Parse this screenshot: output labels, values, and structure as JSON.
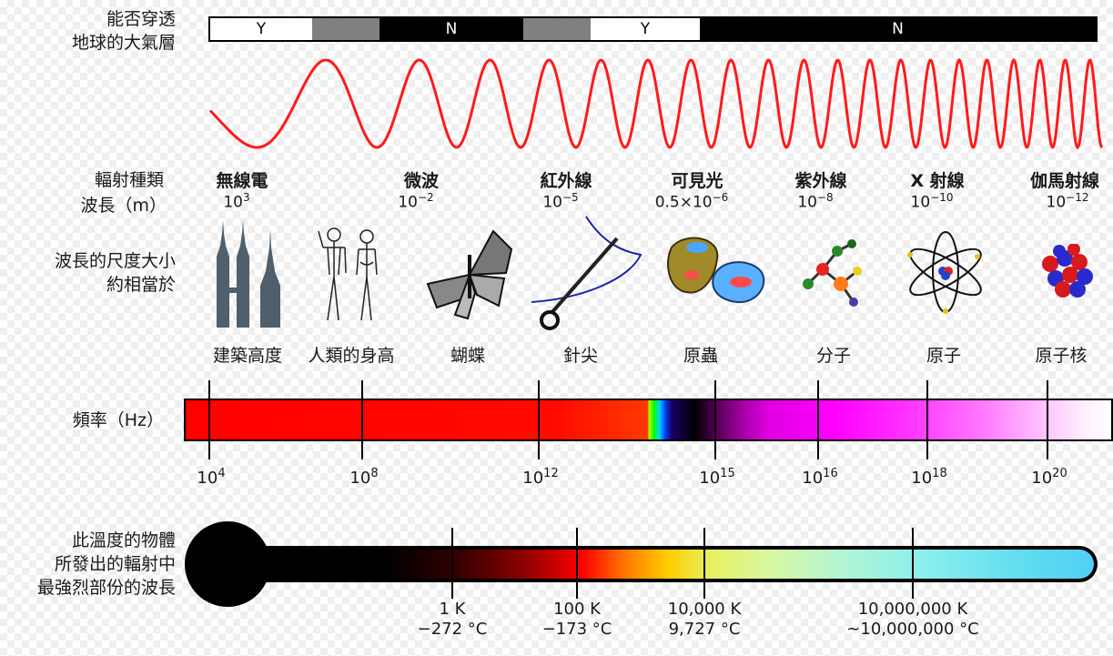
{
  "atmosphere": {
    "label": "能否穿透\n地球的大氣層",
    "segments": [
      {
        "text": "Y",
        "color": "#ffffff"
      },
      {
        "text": "",
        "color": "#808080"
      },
      {
        "text": "N",
        "color": "#000000"
      },
      {
        "text": "",
        "color": "#808080"
      },
      {
        "text": "Y",
        "color": "#ffffff"
      },
      {
        "text": "N",
        "color": "#000000"
      }
    ]
  },
  "wave_color": "#ff1a1a",
  "row_labels": {
    "type": "輻射種類",
    "wavelength": "波長（m）",
    "scale": "波長的尺度大小\n約相當於",
    "frequency": "頻率（Hz）",
    "temperature": "此溫度的物體\n所發出的輻射中\n最強烈部份的波長"
  },
  "radiation_types": [
    {
      "name": "無線電",
      "wl_base": "10",
      "wl_exp": "3"
    },
    {
      "name": "微波",
      "wl_base": "10",
      "wl_exp": "−2"
    },
    {
      "name": "紅外線",
      "wl_base": "10",
      "wl_exp": "−5"
    },
    {
      "name": "可見光",
      "wl_base": "0.5×10",
      "wl_exp": "−6"
    },
    {
      "name": "紫外線",
      "wl_base": "10",
      "wl_exp": "−8"
    },
    {
      "name": "X 射線",
      "wl_base": "10",
      "wl_exp": "−10"
    },
    {
      "name": "伽馬射線",
      "wl_base": "10",
      "wl_exp": "−12"
    }
  ],
  "scale_objects": [
    {
      "label": "建築高度",
      "icon": "towers-icon"
    },
    {
      "label": "人類的身高",
      "icon": "humans-icon"
    },
    {
      "label": "蝴蝶",
      "icon": "butterfly-icon"
    },
    {
      "label": "針尖",
      "icon": "needle-icon"
    },
    {
      "label": "原蟲",
      "icon": "protozoa-icon"
    },
    {
      "label": "分子",
      "icon": "molecule-icon"
    },
    {
      "label": "原子",
      "icon": "atom-icon"
    },
    {
      "label": "原子核",
      "icon": "nucleus-icon"
    }
  ],
  "frequency_ticks": [
    {
      "base": "10",
      "exp": "4"
    },
    {
      "base": "10",
      "exp": "8"
    },
    {
      "base": "10",
      "exp": "12"
    },
    {
      "base": "10",
      "exp": "15"
    },
    {
      "base": "10",
      "exp": "16"
    },
    {
      "base": "10",
      "exp": "18"
    },
    {
      "base": "10",
      "exp": "20"
    }
  ],
  "temperature_ticks": [
    {
      "kelvin": "1 K",
      "celsius": "−272 °C"
    },
    {
      "kelvin": "100 K",
      "celsius": "−173 °C"
    },
    {
      "kelvin": "10,000 K",
      "celsius": "9,727 °C"
    },
    {
      "kelvin": "10,000,000 K",
      "celsius": "~10,000,000 °C"
    }
  ]
}
